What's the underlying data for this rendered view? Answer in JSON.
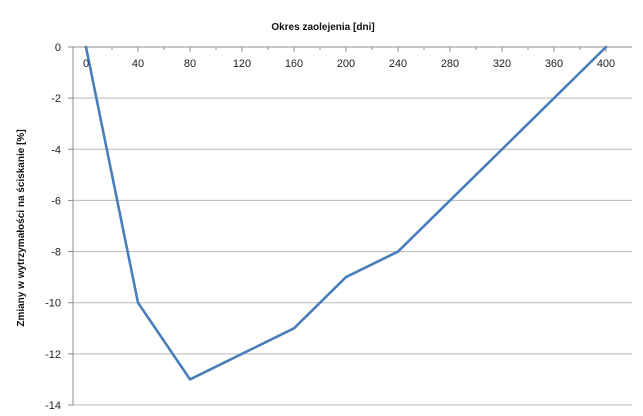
{
  "chart_data": {
    "type": "line",
    "xlabel": "Okres zaolejenia  [dni]",
    "ylabel": "Zmiany w wytrzymałości na ściskanie [%]",
    "x_ticks": [
      0,
      40,
      80,
      120,
      160,
      200,
      240,
      280,
      320,
      360,
      400
    ],
    "y_ticks": [
      0,
      -2,
      -4,
      -6,
      -8,
      -10,
      -12,
      -14
    ],
    "xlim": [
      -10,
      420
    ],
    "ylim": [
      -14,
      0
    ],
    "x_axis_position": "top",
    "grid": "horizontal",
    "series": [
      {
        "x": [
          0,
          40,
          80,
          160,
          200,
          240,
          400
        ],
        "y": [
          0,
          -10,
          -13,
          -11,
          -9,
          -8,
          0
        ],
        "color": "#4a7ebb"
      }
    ],
    "colors": {
      "grid": "#b9b9b9",
      "axis": "#8c8c8c"
    }
  }
}
